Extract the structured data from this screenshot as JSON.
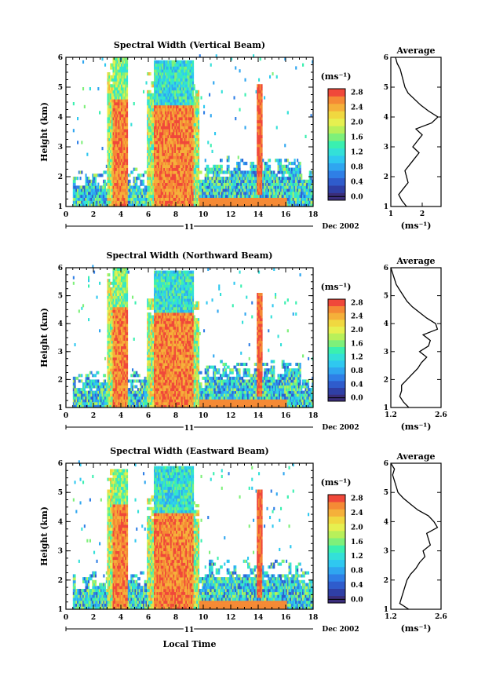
{
  "colorbar_levels": [
    {
      "label": "0.0",
      "color": "#3a2d7a"
    },
    {
      "label": "",
      "color": "#2f3fa6"
    },
    {
      "label": "0.4",
      "color": "#2f5ccc"
    },
    {
      "label": "",
      "color": "#2f7fe6"
    },
    {
      "label": "0.8",
      "color": "#2fa6f0"
    },
    {
      "label": "",
      "color": "#2fc8f0"
    },
    {
      "label": "1.2",
      "color": "#33e0d8"
    },
    {
      "label": "",
      "color": "#3af0b0"
    },
    {
      "label": "1.6",
      "color": "#7ef07a"
    },
    {
      "label": "",
      "color": "#b8f05a"
    },
    {
      "label": "2.0",
      "color": "#e6f050"
    },
    {
      "label": "",
      "color": "#f0d840"
    },
    {
      "label": "2.4",
      "color": "#f5b03a"
    },
    {
      "label": "",
      "color": "#f58a35"
    },
    {
      "label": "2.8",
      "color": "#f0483a"
    }
  ],
  "chart_data": [
    {
      "type": "heatmap",
      "title": "Spectral Width (Vertical Beam)",
      "xlabel": "",
      "ylabel": "Height (km)",
      "date_label": "11",
      "date_suffix": "Dec 2002",
      "xticks": [
        "0",
        "2",
        "4",
        "6",
        "8",
        "10",
        "12",
        "14",
        "16",
        "18"
      ],
      "yticks": [
        "1",
        "2",
        "3",
        "4",
        "5",
        "6"
      ],
      "xlim": [
        0,
        18
      ],
      "ylim": [
        1,
        6
      ],
      "colorbar_unit": "(ms⁻¹)",
      "colorbar_labels": [
        "0.0",
        "0.4",
        "0.8",
        "1.2",
        "1.6",
        "2.0",
        "2.4",
        "2.8"
      ],
      "side_title": "Average",
      "side_xticks": [
        "1",
        "2"
      ],
      "side_xlim": [
        1,
        2.6
      ],
      "side_xlabel": "(ms⁻¹)",
      "heights": [
        1.0,
        1.2,
        1.4,
        1.6,
        1.8,
        2.0,
        2.2,
        2.4,
        2.6,
        2.8,
        3.0,
        3.2,
        3.4,
        3.6,
        3.8,
        4.0,
        4.2,
        4.4,
        4.6,
        4.8,
        5.0,
        5.2,
        5.4,
        5.6,
        5.8,
        6.0
      ],
      "average": [
        1.5,
        1.35,
        1.25,
        1.4,
        1.55,
        1.5,
        1.45,
        1.6,
        1.75,
        1.9,
        1.7,
        1.85,
        2.0,
        1.8,
        2.3,
        2.5,
        2.2,
        1.95,
        1.75,
        1.55,
        1.45,
        1.4,
        1.35,
        1.3,
        1.2,
        1.15
      ]
    },
    {
      "type": "heatmap",
      "title": "Spectral Width (Northward Beam)",
      "xlabel": "",
      "ylabel": "Height (km)",
      "date_label": "11",
      "date_suffix": "Dec 2002",
      "xticks": [
        "0",
        "2",
        "4",
        "6",
        "8",
        "10",
        "12",
        "14",
        "16",
        "18"
      ],
      "yticks": [
        "1",
        "2",
        "3",
        "4",
        "5",
        "6"
      ],
      "xlim": [
        0,
        18
      ],
      "ylim": [
        1,
        6
      ],
      "colorbar_unit": "(ms⁻¹)",
      "colorbar_labels": [
        "0.0",
        "0.4",
        "0.8",
        "1.2",
        "1.6",
        "2.0",
        "2.4",
        "2.8"
      ],
      "side_title": "Average",
      "side_xticks": [
        "1.2",
        "2.6"
      ],
      "side_xlim": [
        1.2,
        2.6
      ],
      "side_xlabel": "(ms⁻¹)",
      "heights": [
        1.0,
        1.2,
        1.4,
        1.6,
        1.8,
        2.0,
        2.2,
        2.4,
        2.6,
        2.8,
        3.0,
        3.2,
        3.4,
        3.6,
        3.8,
        4.0,
        4.2,
        4.4,
        4.6,
        4.8,
        5.0,
        5.2,
        5.4,
        5.6,
        5.8,
        6.0
      ],
      "average": [
        1.7,
        1.55,
        1.45,
        1.5,
        1.5,
        1.65,
        1.8,
        1.95,
        2.05,
        2.2,
        2.0,
        2.25,
        2.3,
        2.1,
        2.5,
        2.45,
        2.2,
        2.0,
        1.8,
        1.65,
        1.55,
        1.45,
        1.35,
        1.3,
        1.25,
        1.2
      ]
    },
    {
      "type": "heatmap",
      "title": "Spectral Width (Eastward Beam)",
      "xlabel": "Local Time",
      "ylabel": "Height (km)",
      "date_label": "11",
      "date_suffix": "Dec 2002",
      "xticks": [
        "0",
        "2",
        "4",
        "6",
        "8",
        "10",
        "12",
        "14",
        "16",
        "18"
      ],
      "yticks": [
        "1",
        "2",
        "3",
        "4",
        "5",
        "6"
      ],
      "xlim": [
        0,
        18
      ],
      "ylim": [
        1,
        6
      ],
      "colorbar_unit": "(ms⁻¹)",
      "colorbar_labels": [
        "0.0",
        "0.4",
        "0.8",
        "1.2",
        "1.6",
        "2.0",
        "2.4",
        "2.8"
      ],
      "side_title": "Average",
      "side_xticks": [
        "1.2",
        "2.6"
      ],
      "side_xlim": [
        1.2,
        2.6
      ],
      "side_xlabel": "(ms⁻¹)",
      "heights": [
        1.0,
        1.2,
        1.4,
        1.6,
        1.8,
        2.0,
        2.2,
        2.4,
        2.6,
        2.8,
        3.0,
        3.2,
        3.4,
        3.6,
        3.8,
        4.0,
        4.2,
        4.4,
        4.6,
        4.8,
        5.0,
        5.2,
        5.4,
        5.6,
        5.8,
        6.0
      ],
      "average": [
        1.7,
        1.45,
        1.5,
        1.55,
        1.6,
        1.65,
        1.75,
        1.9,
        2.0,
        2.15,
        2.1,
        2.3,
        2.25,
        2.2,
        2.5,
        2.4,
        2.25,
        1.95,
        1.75,
        1.55,
        1.4,
        1.35,
        1.3,
        1.25,
        1.3,
        1.2
      ]
    }
  ]
}
